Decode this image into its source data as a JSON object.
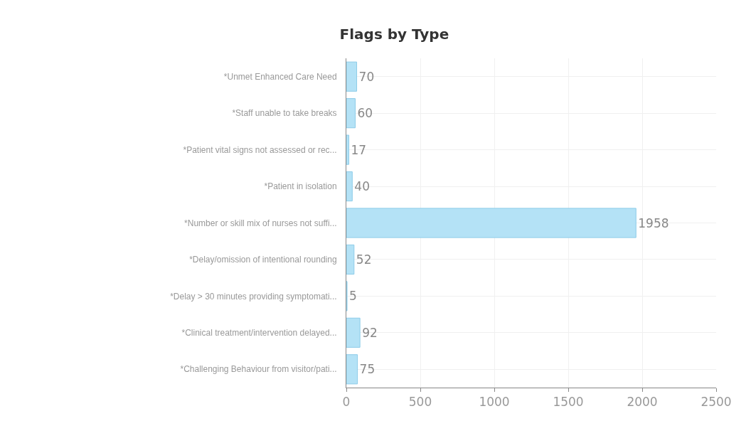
{
  "chart_data": {
    "type": "bar",
    "orientation": "horizontal",
    "title": "Flags by Type",
    "categories": [
      "*Unmet Enhanced Care Need",
      "*Staff unable to take breaks",
      "*Patient vital signs not assessed or rec...",
      "*Patient in isolation",
      "*Number or skill mix of nurses not suffi...",
      "*Delay/omission of intentional rounding",
      "*Delay > 30 minutes providing symptomati...",
      "*Clinical treatment/intervention delayed...",
      "*Challenging Behaviour from visitor/pati..."
    ],
    "values": [
      70,
      60,
      17,
      40,
      1958,
      52,
      5,
      92,
      75
    ],
    "color": "#b4e2f6",
    "data_labels": true,
    "xlim": [
      0,
      2500
    ],
    "xticks": [
      0,
      500,
      1000,
      1500,
      2000,
      2500
    ],
    "grid": true,
    "legend": false
  }
}
